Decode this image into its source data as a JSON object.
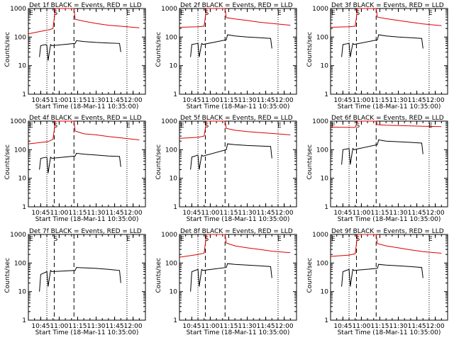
{
  "chart_data": [
    {
      "type": "line",
      "title": "Det 1f BLACK = Events, RED = LLD",
      "xlabel": "Start Time (18-Mar-11 10:35:00)",
      "ylabel": "Counts/sec",
      "x_ticks": [
        "10:45",
        "11:00",
        "11:15",
        "11:30",
        "11:45",
        "12:00"
      ],
      "y_ticks": [
        "1",
        "10",
        "100",
        "1000"
      ],
      "ylim": [
        1,
        1000
      ],
      "y_scale": "log",
      "markers": [
        "E",
        "S",
        "E"
      ],
      "series": [
        {
          "name": "RED = LLD",
          "color": "#dd0000",
          "x": [
            "10:35",
            "10:50",
            "10:52",
            "10:55",
            "10:57",
            "11:12",
            "11:13",
            "11:20",
            "11:30",
            "11:40",
            "11:50",
            "12:05"
          ],
          "values": [
            130,
            175,
            180,
            200,
            1000,
            1000,
            420,
            360,
            300,
            260,
            240,
            210
          ]
        },
        {
          "name": "BLACK = Events",
          "color": "#000000",
          "x": [
            "10:44",
            "10:45",
            "10:49",
            "10:50",
            "10:51",
            "10:53",
            "10:54",
            "11:13",
            "11:14",
            "11:20",
            "11:30",
            "11:40",
            "11:49",
            "11:50"
          ],
          "values": [
            20,
            50,
            55,
            50,
            15,
            55,
            50,
            60,
            75,
            70,
            65,
            62,
            60,
            30
          ]
        }
      ]
    },
    {
      "type": "line",
      "title": "Det 2f BLACK = Events, RED = LLD",
      "xlabel": "Start Time (18-Mar-11 10:35:00)",
      "ylabel": "Counts/sec",
      "x_ticks": [
        "10:45",
        "11:00",
        "11:15",
        "11:30",
        "11:45",
        "12:00"
      ],
      "y_ticks": [
        "1",
        "10",
        "100",
        "1000"
      ],
      "ylim": [
        1,
        1000
      ],
      "y_scale": "log",
      "markers": [
        "E",
        "S",
        "E"
      ],
      "series": [
        {
          "name": "RED = LLD",
          "color": "#dd0000",
          "x": [
            "10:35",
            "10:50",
            "10:55",
            "10:57",
            "11:12",
            "11:13",
            "11:20",
            "11:30",
            "11:40",
            "11:50",
            "12:05"
          ],
          "values": [
            220,
            230,
            240,
            1000,
            1000,
            480,
            430,
            380,
            330,
            300,
            260
          ]
        },
        {
          "name": "BLACK = Events",
          "color": "#000000",
          "x": [
            "10:44",
            "10:45",
            "10:50",
            "10:51",
            "10:53",
            "10:54",
            "11:13",
            "11:14",
            "11:20",
            "11:30",
            "11:40",
            "11:49",
            "11:50"
          ],
          "values": [
            20,
            55,
            60,
            20,
            60,
            55,
            80,
            120,
            110,
            100,
            95,
            90,
            40
          ]
        }
      ]
    },
    {
      "type": "line",
      "title": "Det 3f BLACK = Events, RED = LLD",
      "xlabel": "Start Time (18-Mar-11 10:35:00)",
      "ylabel": "Counts/sec",
      "x_ticks": [
        "10:45",
        "11:00",
        "11:15",
        "11:30",
        "11:45",
        "12:00"
      ],
      "y_ticks": [
        "1",
        "10",
        "100",
        "1000"
      ],
      "ylim": [
        1,
        1000
      ],
      "y_scale": "log",
      "markers": [
        "E",
        "S",
        "E"
      ],
      "series": [
        {
          "name": "RED = LLD",
          "color": "#dd0000",
          "x": [
            "10:35",
            "10:50",
            "10:55",
            "10:57",
            "11:12",
            "11:13",
            "11:20",
            "11:30",
            "11:40",
            "11:50",
            "12:05"
          ],
          "values": [
            220,
            230,
            240,
            1000,
            1000,
            500,
            440,
            380,
            330,
            290,
            250
          ]
        },
        {
          "name": "BLACK = Events",
          "color": "#000000",
          "x": [
            "10:44",
            "10:45",
            "10:50",
            "10:51",
            "10:53",
            "10:54",
            "11:13",
            "11:14",
            "11:20",
            "11:30",
            "11:40",
            "11:49",
            "11:50"
          ],
          "values": [
            20,
            55,
            60,
            20,
            60,
            55,
            80,
            120,
            110,
            100,
            95,
            90,
            40
          ]
        }
      ]
    },
    {
      "type": "line",
      "title": "Det 4f BLACK = Events, RED = LLD",
      "xlabel": "Start Time (18-Mar-11 10:35:00)",
      "ylabel": "Counts/sec",
      "x_ticks": [
        "10:45",
        "11:00",
        "11:15",
        "11:30",
        "11:45",
        "12:00"
      ],
      "y_ticks": [
        "1",
        "10",
        "100",
        "1000"
      ],
      "ylim": [
        1,
        1000
      ],
      "y_scale": "log",
      "markers": [
        "E",
        "S",
        "E"
      ],
      "series": [
        {
          "name": "RED = LLD",
          "color": "#dd0000",
          "x": [
            "10:35",
            "10:50",
            "10:52",
            "10:55",
            "10:57",
            "11:12",
            "11:13",
            "11:20",
            "11:30",
            "11:40",
            "11:50",
            "12:05"
          ],
          "values": [
            160,
            190,
            200,
            230,
            1000,
            1000,
            450,
            360,
            330,
            290,
            260,
            220
          ]
        },
        {
          "name": "BLACK = Events",
          "color": "#000000",
          "x": [
            "10:44",
            "10:45",
            "10:50",
            "10:51",
            "10:53",
            "10:54",
            "11:13",
            "11:14",
            "11:20",
            "11:30",
            "11:40",
            "11:49",
            "11:50"
          ],
          "values": [
            20,
            50,
            55,
            15,
            55,
            50,
            60,
            75,
            70,
            65,
            60,
            58,
            25
          ]
        }
      ]
    },
    {
      "type": "line",
      "title": "Det 5f BLACK = Events, RED = LLD",
      "xlabel": "Start Time (18-Mar-11 10:35:00)",
      "ylabel": "Counts/sec",
      "x_ticks": [
        "10:45",
        "11:00",
        "11:15",
        "11:30",
        "11:45",
        "12:00"
      ],
      "y_ticks": [
        "1",
        "10",
        "100",
        "1000"
      ],
      "ylim": [
        1,
        1000
      ],
      "y_scale": "log",
      "markers": [
        "E",
        "S",
        "E"
      ],
      "series": [
        {
          "name": "RED = LLD",
          "color": "#dd0000",
          "x": [
            "10:35",
            "10:50",
            "10:55",
            "10:57",
            "11:12",
            "11:13",
            "11:20",
            "11:30",
            "11:40",
            "11:50",
            "12:05"
          ],
          "values": [
            250,
            270,
            300,
            1000,
            1000,
            560,
            480,
            430,
            400,
            370,
            330
          ]
        },
        {
          "name": "BLACK = Events",
          "color": "#000000",
          "x": [
            "10:44",
            "10:45",
            "10:50",
            "10:51",
            "10:53",
            "10:54",
            "11:13",
            "11:14",
            "11:20",
            "11:30",
            "11:40",
            "11:49",
            "11:50"
          ],
          "values": [
            20,
            55,
            65,
            20,
            65,
            60,
            100,
            160,
            150,
            140,
            135,
            130,
            50
          ]
        }
      ]
    },
    {
      "type": "line",
      "title": "Det 6f BLACK = Events, RED = LLD",
      "xlabel": "Start Time (18-Mar-11 10:35:00)",
      "ylabel": "Counts/sec",
      "x_ticks": [
        "10:45",
        "11:00",
        "11:15",
        "11:30",
        "11:45",
        "12:00"
      ],
      "y_ticks": [
        "1",
        "10",
        "100",
        "1000"
      ],
      "ylim": [
        1,
        1000
      ],
      "y_scale": "log",
      "markers": [
        "E",
        "S",
        "E"
      ],
      "series": [
        {
          "name": "RED = LLD",
          "color": "#dd0000",
          "x": [
            "10:35",
            "10:50",
            "10:55",
            "10:57",
            "11:12",
            "11:13",
            "11:20",
            "11:30",
            "11:40",
            "11:50",
            "12:05"
          ],
          "values": [
            620,
            600,
            600,
            1000,
            1000,
            750,
            720,
            700,
            680,
            660,
            640
          ]
        },
        {
          "name": "BLACK = Events",
          "color": "#000000",
          "x": [
            "10:44",
            "10:45",
            "10:50",
            "10:51",
            "10:53",
            "10:54",
            "11:13",
            "11:14",
            "11:20",
            "11:30",
            "11:40",
            "11:49",
            "11:50"
          ],
          "values": [
            30,
            100,
            110,
            30,
            110,
            100,
            150,
            220,
            200,
            190,
            180,
            170,
            70
          ]
        }
      ]
    },
    {
      "type": "line",
      "title": "Det 7f BLACK = Events, RED = LLD",
      "xlabel": "Start Time (18-Mar-11 10:35:00)",
      "ylabel": "Counts/sec",
      "x_ticks": [
        "10:45",
        "11:00",
        "11:15",
        "11:30",
        "11:45",
        "12:00"
      ],
      "y_ticks": [
        "1",
        "10",
        "100",
        "1000"
      ],
      "ylim": [
        1,
        1000
      ],
      "y_scale": "log",
      "markers": [
        "E",
        "S",
        "E"
      ],
      "series": [
        {
          "name": "BLACK = Events",
          "color": "#000000",
          "x": [
            "10:44",
            "10:45",
            "10:50",
            "10:51",
            "10:53",
            "10:54",
            "11:13",
            "11:14",
            "11:20",
            "11:30",
            "11:40",
            "11:49",
            "11:50"
          ],
          "values": [
            10,
            40,
            50,
            15,
            55,
            50,
            55,
            70,
            68,
            65,
            60,
            55,
            20
          ]
        }
      ]
    },
    {
      "type": "line",
      "title": "Det 8f BLACK = Events, RED = LLD",
      "xlabel": "Start Time (18-Mar-11 10:35:00)",
      "ylabel": "Counts/sec",
      "x_ticks": [
        "10:45",
        "11:00",
        "11:15",
        "11:30",
        "11:45",
        "12:00"
      ],
      "y_ticks": [
        "1",
        "10",
        "100",
        "1000"
      ],
      "ylim": [
        1,
        1000
      ],
      "y_scale": "log",
      "markers": [
        "E",
        "S",
        "E"
      ],
      "series": [
        {
          "name": "RED = LLD",
          "color": "#dd0000",
          "x": [
            "10:35",
            "10:50",
            "10:55",
            "10:57",
            "11:12",
            "11:13",
            "11:20",
            "11:30",
            "11:40",
            "11:50",
            "12:05"
          ],
          "values": [
            160,
            200,
            220,
            1000,
            1000,
            500,
            400,
            340,
            300,
            260,
            230
          ]
        },
        {
          "name": "BLACK = Events",
          "color": "#000000",
          "x": [
            "10:44",
            "10:45",
            "10:50",
            "10:51",
            "10:53",
            "10:54",
            "11:13",
            "11:14",
            "11:20",
            "11:30",
            "11:40",
            "11:49",
            "11:50"
          ],
          "values": [
            10,
            50,
            60,
            15,
            60,
            55,
            70,
            95,
            90,
            85,
            80,
            75,
            30
          ]
        }
      ]
    },
    {
      "type": "line",
      "title": "Det 9f BLACK = Events, RED = LLD",
      "xlabel": "Start Time (18-Mar-11 10:35:00)",
      "ylabel": "Counts/sec",
      "x_ticks": [
        "10:45",
        "11:00",
        "11:15",
        "11:30",
        "11:45",
        "12:00"
      ],
      "y_ticks": [
        "1",
        "10",
        "100",
        "1000"
      ],
      "ylim": [
        1,
        1000
      ],
      "y_scale": "log",
      "markers": [
        "E",
        "S",
        "E"
      ],
      "series": [
        {
          "name": "RED = LLD",
          "color": "#dd0000",
          "x": [
            "10:35",
            "10:50",
            "10:55",
            "10:57",
            "11:12",
            "11:13",
            "11:20",
            "11:30",
            "11:40",
            "11:50",
            "12:05"
          ],
          "values": [
            170,
            190,
            210,
            1000,
            1000,
            480,
            400,
            340,
            290,
            250,
            220
          ]
        },
        {
          "name": "BLACK = Events",
          "color": "#000000",
          "x": [
            "10:44",
            "10:45",
            "10:50",
            "10:51",
            "10:53",
            "10:54",
            "11:13",
            "11:14",
            "11:20",
            "11:30",
            "11:40",
            "11:49",
            "11:50"
          ],
          "values": [
            15,
            50,
            60,
            15,
            60,
            55,
            65,
            90,
            85,
            80,
            75,
            70,
            30
          ]
        }
      ]
    }
  ]
}
